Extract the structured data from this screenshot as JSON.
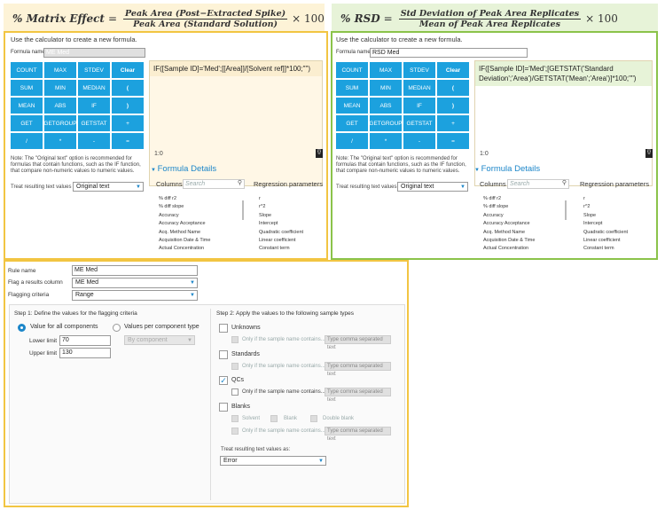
{
  "left_header": {
    "label": "% Matrix Effect",
    "eq": "=",
    "numerator": "Peak Area (Post−Extracted Spike)",
    "denominator": "Peak Area (Standard Solution)",
    "mult": "× 100"
  },
  "right_header": {
    "label": "% RSD",
    "eq": "=",
    "numerator": "Std Deviation of Peak Area Replicates",
    "denominator": "Mean of Peak Area Replicates",
    "mult": "× 100"
  },
  "left_calc": {
    "intro": "Use the calculator to create a new formula.",
    "formula_name_label": "Formula name",
    "formula_name_value": "ME Med",
    "formula": "IF([Sample ID]='Med';[[Area]]/[Solvent ref]]*100;\"\")",
    "cursor": "1:0",
    "buttons": [
      "COUNT",
      "MAX",
      "STDEV",
      "Clear",
      "SUM",
      "MIN",
      "MEDIAN",
      "(",
      "MEAN",
      "ABS",
      "IF",
      ")",
      "GET",
      "GETGROUP",
      "GETSTAT",
      "+",
      "/",
      "*",
      "-",
      "="
    ],
    "note": "Note: The \"Original text\" option is recommended for formulas that contain functions, such as the IF function, that compare non-numeric values to numeric values.",
    "treat_label": "Treat resulting text values as",
    "treat_value": "Original text",
    "formula_details": "Formula Details",
    "columns_label": "Columns",
    "search_placeholder": "Search",
    "columns": [
      "% diff r2",
      "% diff slope",
      "Accuracy",
      "Accuracy Acceptance",
      "Acq. Method Name",
      "Acquisition Date & Time",
      "Actual Concentration"
    ],
    "regression_label": "Regression parameters",
    "regression": [
      "r",
      "r^2",
      "Slope",
      "Intercept",
      "Quadratic coefficient",
      "Linear coefficient",
      "Constant term"
    ]
  },
  "right_calc": {
    "intro": "Use the calculator to create a new formula.",
    "formula_name_label": "Formula name",
    "formula_name_value": "RSD Med",
    "formula": "IF([Sample ID]='Med';[GETSTAT('Standard Deviation';'Area')/GETSTAT('Mean';'Area')]*100;\"\")",
    "cursor": "1:0",
    "buttons": [
      "COUNT",
      "MAX",
      "STDEV",
      "Clear",
      "SUM",
      "MIN",
      "MEDIAN",
      "(",
      "MEAN",
      "ABS",
      "IF",
      ")",
      "GET",
      "GETGROUP",
      "GETSTAT",
      "+",
      "/",
      "*",
      "-",
      "="
    ],
    "note": "Note: The \"Original text\" option is recommended for formulas that contain functions, such as the IF function, that compare non-numeric values to numeric values.",
    "treat_label": "Treat resulting text values as",
    "treat_value": "Original text",
    "formula_details": "Formula Details",
    "columns_label": "Columns",
    "search_placeholder": "Search",
    "columns": [
      "% diff r2",
      "% diff slope",
      "Accuracy",
      "Accuracy Acceptance",
      "Acq. Method Name",
      "Acquisition Date & Time",
      "Actual Concentration"
    ],
    "regression_label": "Regression parameters",
    "regression": [
      "r",
      "r^2",
      "Slope",
      "Intercept",
      "Quadratic coefficient",
      "Linear coefficient",
      "Constant term"
    ]
  },
  "rule": {
    "rule_name_label": "Rule name",
    "rule_name_value": "ME Med",
    "flag_label": "Flag a results column",
    "flag_value": "ME Med",
    "criteria_label": "Flagging criteria",
    "criteria_value": "Range",
    "step1": "Step 1:   Define the values for the flagging criteria",
    "value_all": "Value for all components",
    "value_per": "Values per component type",
    "by_component": "By component",
    "lower_label": "Lower limit",
    "lower_value": "70",
    "upper_label": "Upper limit",
    "upper_value": "130",
    "step2": "Step 2:   Apply the values to the following sample types",
    "unknowns": "Unknowns",
    "standards": "Standards",
    "qcs": "QCs",
    "blanks": "Blanks",
    "only_if": "Only if the sample name contains...",
    "type_placeholder": "Type comma separated text",
    "solvent": "Solvent",
    "blank": "Blank",
    "double_blank": "Double blank",
    "treat_label": "Treat resulting text values as:",
    "treat_value": "Error"
  }
}
